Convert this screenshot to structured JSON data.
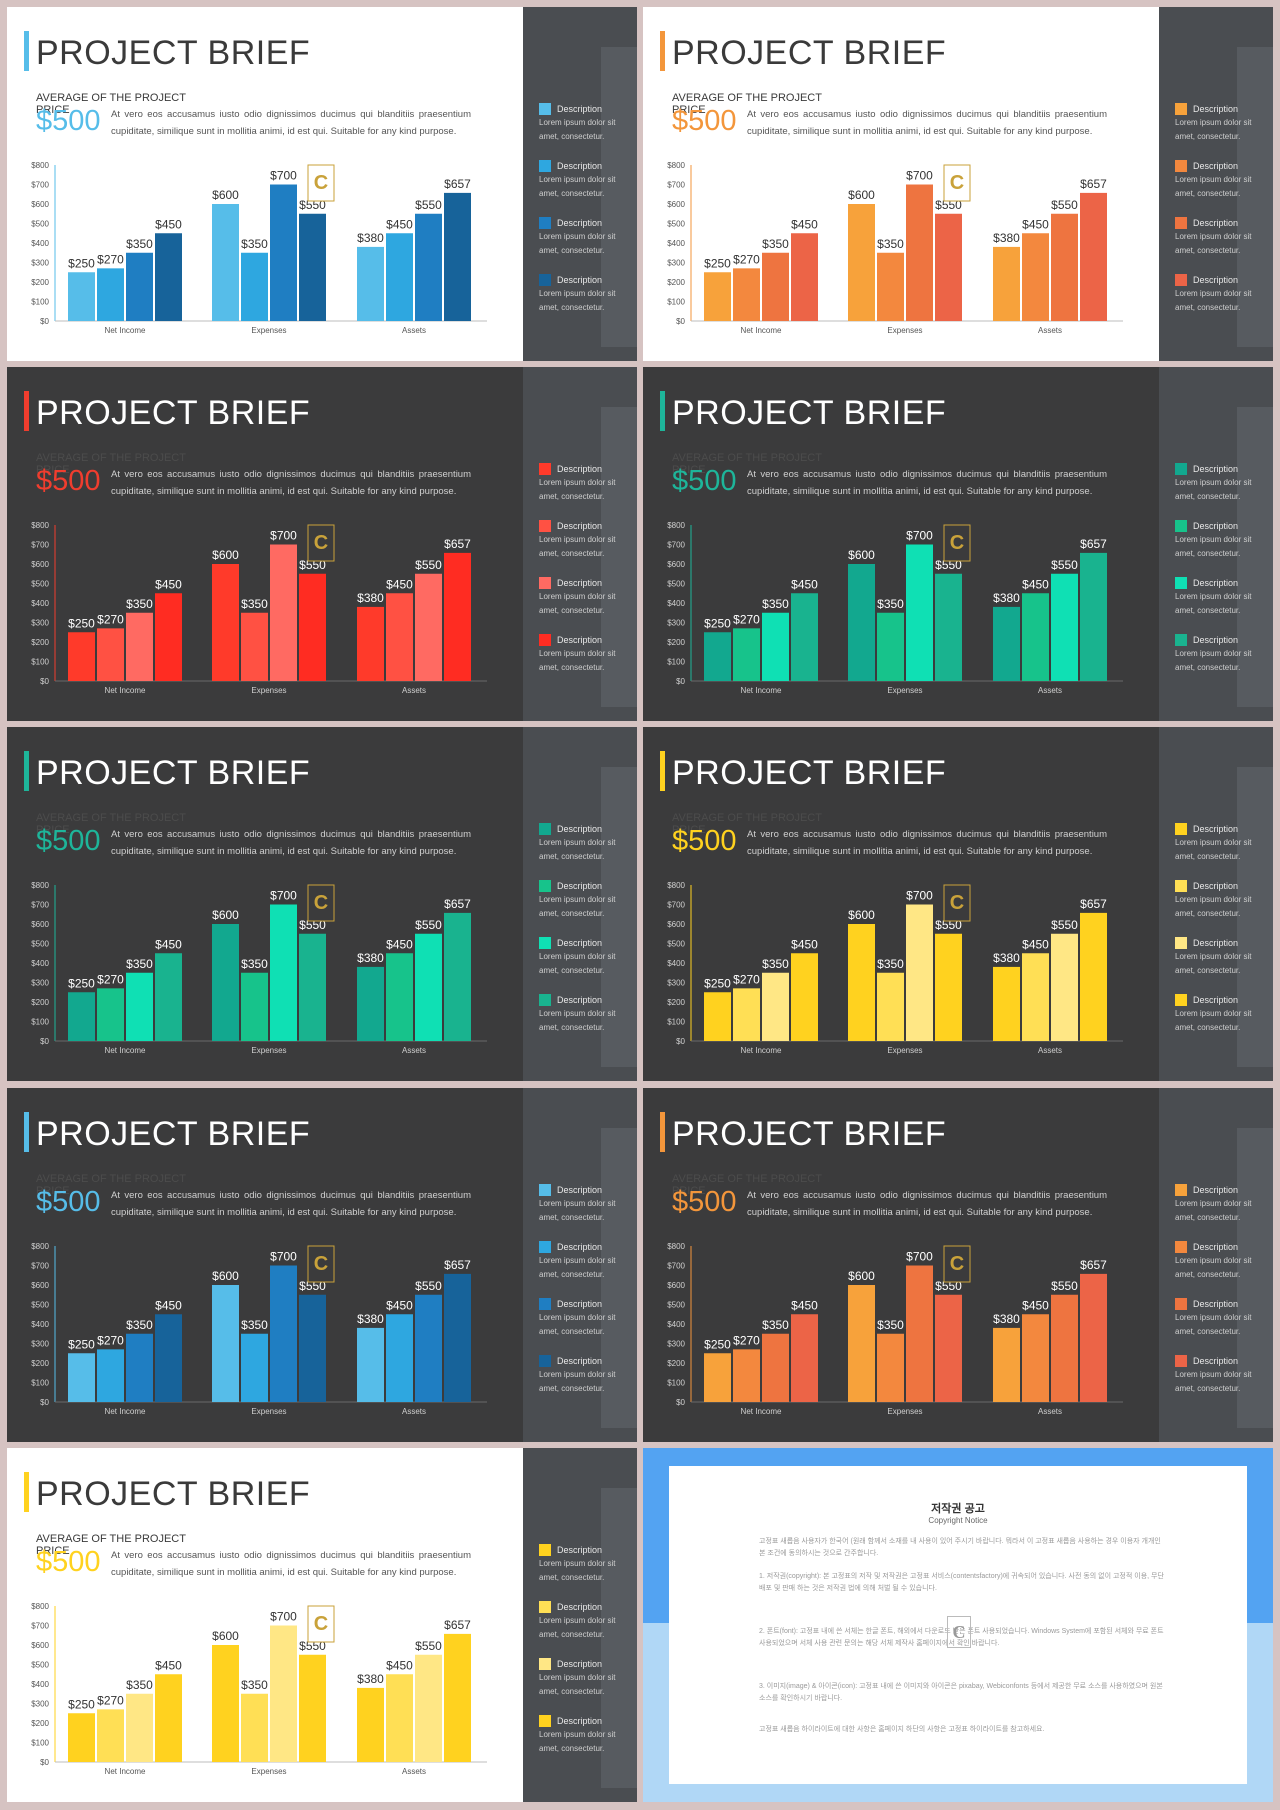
{
  "title": "PROJECT BRIEF",
  "subtitle": "AVERAGE OF THE PROJECT PRICE",
  "price": "$500",
  "body": "At vero eos accusamus iusto odio dignissimos ducimus qui blanditiis praesentium cupiditate, similique sunt in mollitia animi, id est qui. Suitable for any kind purpose.",
  "legend": [
    {
      "title": "Description",
      "text": "Lorem ipsum dolor sit amet, consectetur."
    },
    {
      "title": "Description",
      "text": "Lorem ipsum dolor sit amet, consectetur."
    },
    {
      "title": "Description",
      "text": "Lorem ipsum dolor sit amet, consectetur."
    },
    {
      "title": "Description",
      "text": "Lorem ipsum dolor sit amet, consectetur."
    }
  ],
  "logo_icon": "contents-c-logo-icon",
  "chart_data": {
    "type": "bar",
    "categories": [
      "Net Income",
      "Expenses",
      "Assets"
    ],
    "series": [
      {
        "values": [
          250,
          600,
          380
        ]
      },
      {
        "values": [
          270,
          350,
          450
        ]
      },
      {
        "values": [
          350,
          700,
          550
        ]
      },
      {
        "values": [
          450,
          550,
          657
        ]
      }
    ],
    "data_labels": [
      [
        "$250",
        "$270",
        "$350",
        "$450"
      ],
      [
        "$600",
        "$350",
        "$700",
        "$550"
      ],
      [
        "$380",
        "$450",
        "$550",
        "$657"
      ]
    ],
    "y_ticks": [
      "$0",
      "$100",
      "$200",
      "$300",
      "$400",
      "$500",
      "$600",
      "$700",
      "$800"
    ],
    "ylim": [
      0,
      800
    ],
    "grid": false
  },
  "slides": [
    {
      "theme": "light",
      "accent": "#56bde9",
      "colors": [
        "#56bde9",
        "#2ea7e0",
        "#1f7ec2",
        "#17639a"
      ]
    },
    {
      "theme": "light",
      "accent": "#f3963b",
      "colors": [
        "#f7a23b",
        "#f3883e",
        "#ee7440",
        "#ec6447"
      ]
    },
    {
      "theme": "dark",
      "accent": "#f03d2e",
      "colors": [
        "#ff3a2a",
        "#ff5143",
        "#ff6a62",
        "#ff2c22"
      ]
    },
    {
      "theme": "dark",
      "accent": "#1eb59a",
      "colors": [
        "#12a88f",
        "#17c38b",
        "#0fe0b4",
        "#19b38f"
      ]
    },
    {
      "theme": "dark",
      "accent": "#1eb59a",
      "colors": [
        "#12a88f",
        "#17c38b",
        "#0fe0b4",
        "#19b38f"
      ]
    },
    {
      "theme": "dark",
      "accent": "#ffd21f",
      "colors": [
        "#ffd21f",
        "#ffdf55",
        "#ffe785",
        "#ffd21f"
      ]
    },
    {
      "theme": "dark",
      "accent": "#56bde9",
      "colors": [
        "#56bde9",
        "#2ea7e0",
        "#1f7ec2",
        "#17639a"
      ]
    },
    {
      "theme": "dark",
      "accent": "#f3963b",
      "colors": [
        "#f7a23b",
        "#f3883e",
        "#ee7440",
        "#ec6447"
      ]
    },
    {
      "theme": "light",
      "accent": "#ffd21f",
      "colors": [
        "#ffd21f",
        "#ffdf55",
        "#ffe785",
        "#ffd21f"
      ]
    }
  ],
  "copyright": {
    "title": "저작권 공고",
    "subtitle": "Copyright Notice",
    "paragraphs": [
      "고정표 새롭음 사용자가 한국어 (원래 함께서 소재를 내 사용이 있어 주시기 바랍니다. 뭐라서 이 고정표 새롭음 사용하는 경우 이용자 개개인 본 조건에 동의하시는 것으로 간주합니다.",
      "1. 저작권(copyright): 본 고정표의 저작 및 저작권은 고정표 서비스(contentsfactory)에 귀속되어 있습니다. 사전 동의 없이 고정적 이용, 무단 배포 및 판매 하는 것은 저작권 법에 의해 처벌 될 수 있습니다.",
      "2. 폰트(font): 고정표 내에 쓴 서체는 한글 폰트, 해외에서 다운로드 받은 폰트 사용되었습니다. Windows System에 포함된 서체와 무료 폰트 사용되었으며 서체 사용 관련 문의는 해당 서체 제작사 홈페이지에서 확인 바랍니다.",
      "3. 이미지(image) & 아이콘(icon): 고정표 내에 쓴 이미지와 아이콘은 pixabay, Webiconfonts 등에서 제공한 무료 소스를 사용하였으며 원본 소스를 확인하시기 바랍니다.",
      "고정표 새롭음 하이라이트에 대한 사항은 홈페이지 하단의 사항은 고정표 하이라이트를 참고하세요."
    ]
  }
}
